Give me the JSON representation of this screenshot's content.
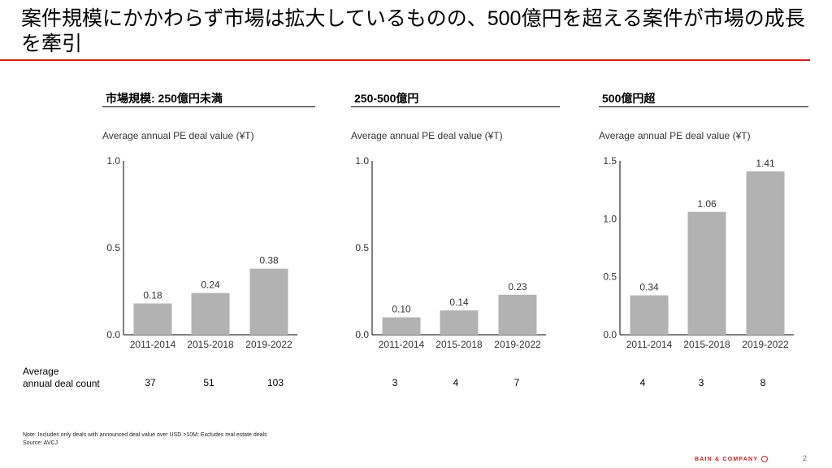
{
  "title": "案件規模にかかわらず市場は拡大しているものの、500億円を超える案件が市場の成長を牽引",
  "colors": {
    "accent": "#cc1f1f",
    "bar": "#b2b2b2",
    "axis": "#000000",
    "text": "#333333"
  },
  "panels": [
    {
      "heading": "市場規模: 250億円未満",
      "subtitle": "Average annual PE deal value (¥T)"
    },
    {
      "heading": "250-500億円",
      "subtitle": "Average annual PE deal value (¥T)"
    },
    {
      "heading": "500億円超",
      "subtitle": "Average annual PE deal value (¥T)"
    }
  ],
  "chart_data": [
    {
      "type": "bar",
      "title": "市場規模: 250億円未満",
      "ylabel": "Average annual PE deal value (¥T)",
      "categories": [
        "2011-2014",
        "2015-2018",
        "2019-2022"
      ],
      "values": [
        0.18,
        0.24,
        0.38
      ],
      "data_labels": [
        "0.18",
        "0.24",
        "0.38"
      ],
      "ylim": [
        0,
        1.0
      ],
      "yticks": [
        "0.0",
        "0.5",
        "1.0"
      ],
      "grid": false
    },
    {
      "type": "bar",
      "title": "250-500億円",
      "ylabel": "Average annual PE deal value (¥T)",
      "categories": [
        "2011-2014",
        "2015-2018",
        "2019-2022"
      ],
      "values": [
        0.1,
        0.14,
        0.23
      ],
      "data_labels": [
        "0.10",
        "0.14",
        "0.23"
      ],
      "ylim": [
        0,
        1.0
      ],
      "yticks": [
        "0.0",
        "0.5",
        "1.0"
      ],
      "grid": false
    },
    {
      "type": "bar",
      "title": "500億円超",
      "ylabel": "Average annual PE deal value (¥T)",
      "categories": [
        "2011-2014",
        "2015-2018",
        "2019-2022"
      ],
      "values": [
        0.34,
        1.06,
        1.41
      ],
      "data_labels": [
        "0.34",
        "1.06",
        "1.41"
      ],
      "ylim": [
        0,
        1.5
      ],
      "yticks": [
        "0.0",
        "0.5",
        "1.0",
        "1.5"
      ],
      "grid": false
    }
  ],
  "deal_count": {
    "label_line1": "Average",
    "label_line2": "annual deal count",
    "values": [
      [
        "37",
        "51",
        "103"
      ],
      [
        "3",
        "4",
        "7"
      ],
      [
        "4",
        "3",
        "8"
      ]
    ]
  },
  "footer": {
    "note": "Note: Includes only deals with announced deal value over USD >10M; Excludes real estate deals",
    "source": "Source: AVCJ",
    "logo": "BAIN & COMPANY",
    "page": "2"
  }
}
